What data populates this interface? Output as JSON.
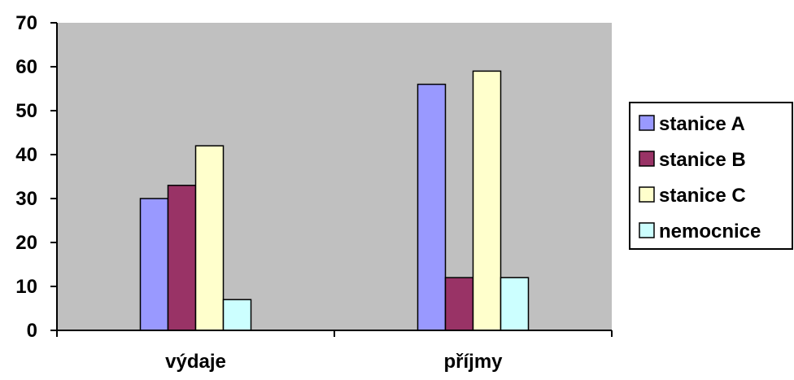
{
  "chart_data": {
    "type": "bar",
    "title": "",
    "xlabel": "",
    "ylabel": "",
    "categories": [
      "výdaje",
      "příjmy"
    ],
    "series": [
      {
        "name": "stanice A",
        "values": [
          30,
          56
        ]
      },
      {
        "name": "stanice B",
        "values": [
          33,
          12
        ]
      },
      {
        "name": "stanice C",
        "values": [
          42,
          59
        ]
      },
      {
        "name": "nemocnice",
        "values": [
          7,
          12
        ]
      }
    ],
    "ylim": [
      0,
      70
    ],
    "yticks": [
      0,
      10,
      20,
      30,
      40,
      50,
      60,
      70
    ],
    "legend": "right",
    "grid": false
  },
  "colors": {
    "plot_background": "#c0c0c0",
    "series": [
      "#9999ff",
      "#993366",
      "#ffffcc",
      "#ccffff"
    ]
  }
}
